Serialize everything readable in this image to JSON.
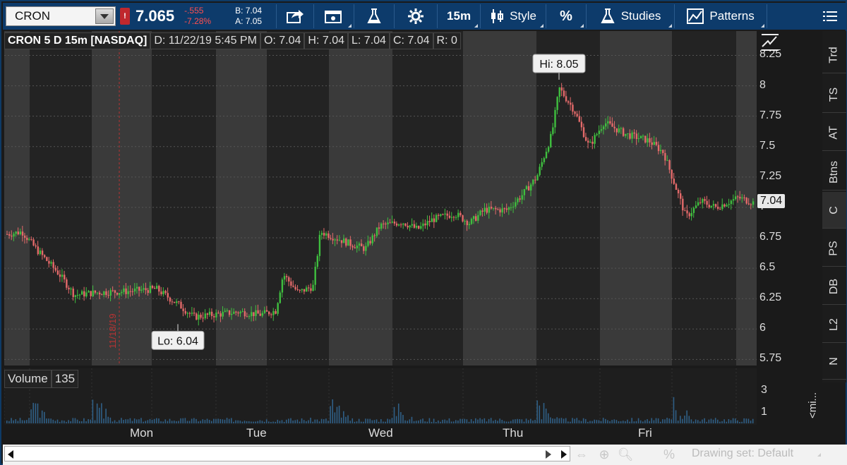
{
  "toolbar": {
    "symbol": "CRON",
    "alert_badge": "!",
    "last_price": "7.065",
    "net_change": "-.555",
    "percent_change": "-7.28%",
    "bid": "B: 7.04",
    "ask": "A: 7.05",
    "timeframe": "15m",
    "style_label": "Style",
    "studies_label": "Studies",
    "patterns_label": "Patterns"
  },
  "info_bar": {
    "title": "CRON 5 D 15m [NASDAQ]",
    "date": "D: 11/22/19 5:45 PM",
    "open": "O: 7.04",
    "high": "H: 7.04",
    "low": "L: 7.04",
    "close": "C: 7.04",
    "range": "R: 0"
  },
  "price_axis": {
    "ticks": [
      "8.25",
      "8",
      "7.75",
      "7.5",
      "7.25",
      "7",
      "6.75",
      "6.5",
      "6.25",
      "6",
      "5.75"
    ],
    "last_price_tag": "7.04"
  },
  "annotations": {
    "hi": "Hi: 8.05",
    "lo": "Lo: 6.04",
    "vertical_marker": "11/18/19"
  },
  "volume": {
    "label": "Volume",
    "value": "135",
    "ticks": [
      "3",
      "1"
    ]
  },
  "x_axis": {
    "labels": [
      "Mon",
      "Tue",
      "Wed",
      "Thu",
      "Fri"
    ]
  },
  "side_tabs": [
    "Trd",
    "TS",
    "AT",
    "Btns",
    "C",
    "PS",
    "DB",
    "L2",
    "N"
  ],
  "mini_label": "<mi...",
  "bottom_bar": {
    "drawing_set": "Drawing set: Default"
  },
  "colors": {
    "up_candle": "#3fbf3f",
    "down_candle": "#e46a6a",
    "volume_bar": "#2f5f86",
    "toolbar_bg": "#0d3b6b"
  },
  "chart_data": {
    "type": "candlestick",
    "title": "CRON 5 D 15m [NASDAQ]",
    "ylim": [
      5.7,
      8.45
    ],
    "y_ticks": [
      8.25,
      8,
      7.75,
      7.5,
      7.25,
      7,
      6.75,
      6.5,
      6.25,
      6,
      5.75
    ],
    "x_categories": [
      "Mon",
      "Tue",
      "Wed",
      "Thu",
      "Fri"
    ],
    "path": [
      [
        0,
        6.78
      ],
      [
        0.02,
        6.8
      ],
      [
        0.04,
        6.65
      ],
      [
        0.07,
        6.45
      ],
      [
        0.09,
        6.28
      ],
      [
        0.12,
        6.3
      ],
      [
        0.16,
        6.31
      ],
      [
        0.2,
        6.33
      ],
      [
        0.23,
        6.2
      ],
      [
        0.25,
        6.1
      ],
      [
        0.28,
        6.12
      ],
      [
        0.31,
        6.14
      ],
      [
        0.34,
        6.12
      ],
      [
        0.36,
        6.15
      ],
      [
        0.37,
        6.45
      ],
      [
        0.39,
        6.3
      ],
      [
        0.41,
        6.35
      ],
      [
        0.42,
        6.8
      ],
      [
        0.44,
        6.75
      ],
      [
        0.46,
        6.7
      ],
      [
        0.48,
        6.66
      ],
      [
        0.5,
        6.85
      ],
      [
        0.53,
        6.88
      ],
      [
        0.55,
        6.82
      ],
      [
        0.57,
        6.9
      ],
      [
        0.6,
        6.95
      ],
      [
        0.62,
        6.87
      ],
      [
        0.64,
        6.98
      ],
      [
        0.67,
        6.98
      ],
      [
        0.69,
        7.1
      ],
      [
        0.71,
        7.25
      ],
      [
        0.73,
        7.6
      ],
      [
        0.74,
        7.98
      ],
      [
        0.76,
        7.8
      ],
      [
        0.78,
        7.5
      ],
      [
        0.8,
        7.7
      ],
      [
        0.83,
        7.6
      ],
      [
        0.86,
        7.55
      ],
      [
        0.88,
        7.45
      ],
      [
        0.9,
        7.1
      ],
      [
        0.91,
        6.92
      ],
      [
        0.93,
        7.05
      ],
      [
        0.95,
        7.0
      ],
      [
        0.98,
        7.08
      ],
      [
        1.0,
        7.04
      ]
    ],
    "hi": 8.05,
    "lo": 6.04,
    "last": 7.04
  }
}
